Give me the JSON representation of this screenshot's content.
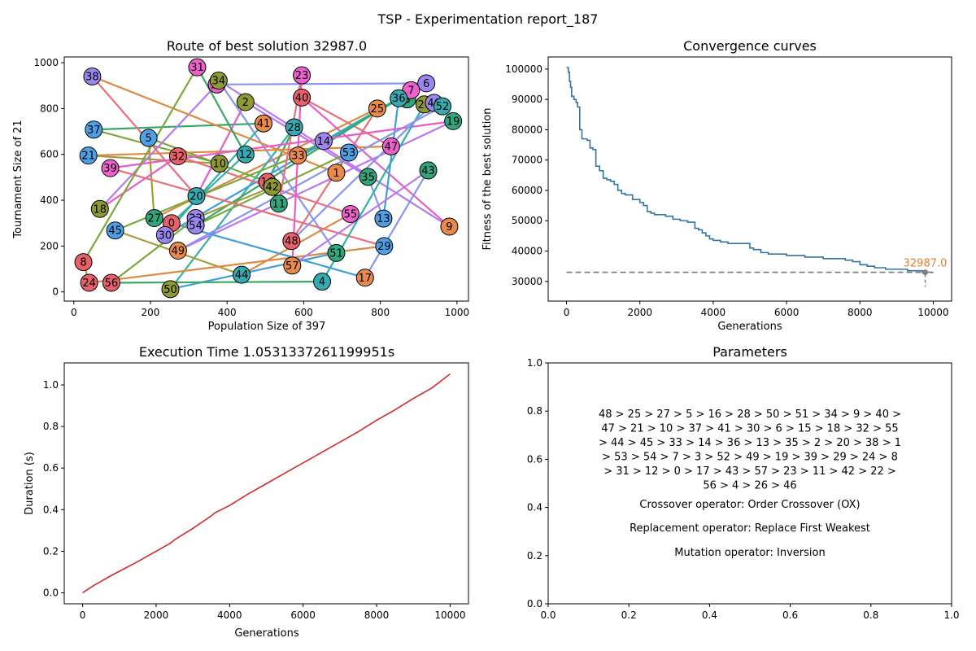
{
  "figure": {
    "suptitle": "TSP - Experimentation report_187"
  },
  "panels": {
    "route": {
      "title": "Route of best solution 32987.0",
      "xlabel": "Population Size of 397",
      "ylabel": "Tournament Size of 21"
    },
    "convergence": {
      "title": "Convergence curves",
      "xlabel": "Generations",
      "ylabel": "Fitness of the best solution",
      "annotation": "32987.0"
    },
    "time": {
      "title": "Execution Time 1.0531337261199951s",
      "xlabel": "Generations",
      "ylabel": "Duration (s)"
    },
    "params": {
      "title": "Parameters",
      "route_lines": [
        "48 > 25 > 27 > 5 > 16 > 28 > 50 > 51 > 34 > 9 > 40 >",
        "47 > 21 > 10 > 37 > 41 > 30 > 6 > 15 > 18 > 32 > 55",
        "> 44 > 45 > 33 > 14 > 36 > 13 > 35 > 2 > 20 > 38 > 1",
        "> 53 > 54 > 7 > 3 > 52 > 49 > 19 > 39 > 29 > 24 > 8",
        "> 31 > 12 > 0 > 17 > 43 > 57 > 23 > 11 > 42 > 22 >",
        "56 > 4 > 26 > 46"
      ],
      "crossover": "Crossover operator: Order Crossover (OX)",
      "replacement": "Replacement operator: Replace First Weakest",
      "mutation": "Mutation operator: Inversion"
    }
  },
  "chart_data": [
    {
      "type": "scatter",
      "title": "Route of best solution 32987.0",
      "xlabel": "Population Size of 397",
      "ylabel": "Tournament Size of 21",
      "xlim": [
        -25,
        1030
      ],
      "ylim": [
        -40,
        1025
      ],
      "xticks": [
        0,
        200,
        400,
        600,
        800,
        1000
      ],
      "yticks": [
        0,
        200,
        400,
        600,
        800,
        1000
      ],
      "cities": [
        {
          "id": 0,
          "x": 255,
          "y": 300
        },
        {
          "id": 1,
          "x": 685,
          "y": 520
        },
        {
          "id": 2,
          "x": 448,
          "y": 828
        },
        {
          "id": 3,
          "x": 870,
          "y": 840
        },
        {
          "id": 4,
          "x": 648,
          "y": 45
        },
        {
          "id": 5,
          "x": 195,
          "y": 672
        },
        {
          "id": 6,
          "x": 920,
          "y": 910
        },
        {
          "id": 7,
          "x": 880,
          "y": 880
        },
        {
          "id": 8,
          "x": 25,
          "y": 130
        },
        {
          "id": 9,
          "x": 980,
          "y": 285
        },
        {
          "id": 10,
          "x": 380,
          "y": 560
        },
        {
          "id": 11,
          "x": 535,
          "y": 385
        },
        {
          "id": 12,
          "x": 448,
          "y": 600
        },
        {
          "id": 13,
          "x": 808,
          "y": 320
        },
        {
          "id": 14,
          "x": 652,
          "y": 658
        },
        {
          "id": 15,
          "x": 373,
          "y": 905
        },
        {
          "id": 16,
          "x": 505,
          "y": 480
        },
        {
          "id": 17,
          "x": 760,
          "y": 62
        },
        {
          "id": 18,
          "x": 68,
          "y": 362
        },
        {
          "id": 19,
          "x": 990,
          "y": 745
        },
        {
          "id": 20,
          "x": 320,
          "y": 418
        },
        {
          "id": 21,
          "x": 38,
          "y": 595
        },
        {
          "id": 22,
          "x": 318,
          "y": 322
        },
        {
          "id": 23,
          "x": 595,
          "y": 945
        },
        {
          "id": 24,
          "x": 40,
          "y": 40
        },
        {
          "id": 25,
          "x": 792,
          "y": 800
        },
        {
          "id": 26,
          "x": 915,
          "y": 818
        },
        {
          "id": 27,
          "x": 210,
          "y": 322
        },
        {
          "id": 28,
          "x": 575,
          "y": 718
        },
        {
          "id": 29,
          "x": 810,
          "y": 200
        },
        {
          "id": 30,
          "x": 238,
          "y": 248
        },
        {
          "id": 31,
          "x": 322,
          "y": 980
        },
        {
          "id": 32,
          "x": 272,
          "y": 592
        },
        {
          "id": 33,
          "x": 585,
          "y": 595
        },
        {
          "id": 34,
          "x": 378,
          "y": 922
        },
        {
          "id": 35,
          "x": 768,
          "y": 502
        },
        {
          "id": 36,
          "x": 848,
          "y": 845
        },
        {
          "id": 37,
          "x": 52,
          "y": 708
        },
        {
          "id": 38,
          "x": 48,
          "y": 940
        },
        {
          "id": 39,
          "x": 95,
          "y": 540
        },
        {
          "id": 40,
          "x": 595,
          "y": 848
        },
        {
          "id": 41,
          "x": 495,
          "y": 735
        },
        {
          "id": 42,
          "x": 518,
          "y": 458
        },
        {
          "id": 43,
          "x": 925,
          "y": 530
        },
        {
          "id": 44,
          "x": 438,
          "y": 75
        },
        {
          "id": 45,
          "x": 108,
          "y": 268
        },
        {
          "id": 46,
          "x": 940,
          "y": 825
        },
        {
          "id": 47,
          "x": 828,
          "y": 635
        },
        {
          "id": 48,
          "x": 568,
          "y": 222
        },
        {
          "id": 49,
          "x": 272,
          "y": 180
        },
        {
          "id": 50,
          "x": 252,
          "y": 12
        },
        {
          "id": 51,
          "x": 685,
          "y": 170
        },
        {
          "id": 52,
          "x": 962,
          "y": 810
        },
        {
          "id": 53,
          "x": 718,
          "y": 608
        },
        {
          "id": 54,
          "x": 318,
          "y": 290
        },
        {
          "id": 55,
          "x": 722,
          "y": 340
        },
        {
          "id": 56,
          "x": 98,
          "y": 40
        },
        {
          "id": 57,
          "x": 570,
          "y": 115
        }
      ],
      "route": [
        48,
        25,
        27,
        5,
        16,
        28,
        50,
        51,
        34,
        9,
        40,
        47,
        21,
        10,
        37,
        41,
        30,
        6,
        15,
        18,
        32,
        55,
        44,
        45,
        33,
        14,
        36,
        13,
        35,
        2,
        20,
        38,
        1,
        53,
        54,
        7,
        3,
        52,
        49,
        19,
        39,
        29,
        24,
        8,
        31,
        12,
        0,
        17,
        43,
        57,
        23,
        11,
        42,
        22,
        56,
        4,
        26,
        46
      ],
      "marker_colors": [
        "#e8616a",
        "#e98a4a",
        "#8f9933",
        "#33a57a",
        "#35aab0",
        "#4da0e6",
        "#9b86ee",
        "#ec61cc"
      ],
      "edge_colors": [
        "#e8707a",
        "#db8a41",
        "#a69a3c",
        "#7ba83c",
        "#3aa766",
        "#34b0a6",
        "#3f9edb",
        "#8696ee",
        "#b67af0",
        "#e65dc8"
      ]
    },
    {
      "type": "line",
      "title": "Convergence curves",
      "xlabel": "Generations",
      "ylabel": "Fitness of the best solution",
      "xlim": [
        -500,
        10500
      ],
      "ylim": [
        23500,
        104000
      ],
      "xticks": [
        0,
        2000,
        4000,
        6000,
        8000,
        10000
      ],
      "yticks": [
        30000,
        40000,
        50000,
        60000,
        70000,
        80000,
        90000,
        100000
      ],
      "best": 32987.0,
      "best_generation": 9780,
      "series": [
        {
          "step": true,
          "color": "#3173a2",
          "x": [
            0,
            50,
            80,
            110,
            140,
            200,
            260,
            300,
            360,
            420,
            480,
            560,
            640,
            720,
            800,
            900,
            1000,
            1100,
            1200,
            1300,
            1400,
            1500,
            1600,
            1800,
            2000,
            2100,
            2200,
            2300,
            2400,
            2500,
            2700,
            2900,
            3100,
            3300,
            3500,
            3600,
            3700,
            3800,
            3900,
            4000,
            4200,
            4400,
            4600,
            4800,
            5000,
            5100,
            5300,
            5500,
            6000,
            6500,
            7000,
            7600,
            7800,
            8000,
            8200,
            8400,
            8700,
            8900,
            9100,
            9300,
            9500,
            9700,
            9780,
            10000
          ],
          "y": [
            100500,
            99000,
            96000,
            94000,
            91000,
            90000,
            89000,
            87500,
            80000,
            77000,
            77000,
            76500,
            74000,
            73500,
            68000,
            66500,
            64000,
            63500,
            63000,
            62000,
            60000,
            59000,
            58500,
            57000,
            56000,
            55000,
            53000,
            52500,
            52000,
            52000,
            51500,
            50500,
            50000,
            49500,
            47500,
            47000,
            46000,
            45000,
            44000,
            43500,
            43000,
            42500,
            42500,
            42500,
            41000,
            40500,
            39500,
            39000,
            38500,
            38000,
            37500,
            37000,
            36500,
            35500,
            35000,
            34500,
            34000,
            34000,
            34000,
            33500,
            33500,
            33000,
            32987,
            32987
          ]
        },
        {
          "name": "",
          "dashed": true,
          "color": "#808080",
          "x": [
            0,
            10000
          ],
          "y": [
            32987,
            32987
          ]
        }
      ]
    },
    {
      "type": "line",
      "title": "Execution Time 1.0531337261199951s",
      "xlabel": "Generations",
      "ylabel": "Duration (s)",
      "xlim": [
        -500,
        10500
      ],
      "ylim": [
        -0.053,
        1.106
      ],
      "xticks": [
        0,
        2000,
        4000,
        6000,
        8000,
        10000
      ],
      "yticks": [
        0.0,
        0.2,
        0.4,
        0.6,
        0.8,
        1.0
      ],
      "series": [
        {
          "color": "#d42a2a",
          "x": [
            0,
            300,
            800,
            1500,
            2000,
            2400,
            2500,
            3000,
            3500,
            3600,
            4000,
            4500,
            5000,
            5500,
            6000,
            6500,
            7000,
            7500,
            8000,
            8500,
            9000,
            9500,
            10000
          ],
          "y": [
            0.0,
            0.035,
            0.085,
            0.15,
            0.2,
            0.24,
            0.255,
            0.31,
            0.37,
            0.385,
            0.42,
            0.475,
            0.525,
            0.575,
            0.625,
            0.675,
            0.725,
            0.775,
            0.83,
            0.88,
            0.935,
            0.985,
            1.053
          ]
        }
      ]
    },
    {
      "type": "table",
      "title": "Parameters",
      "xlim": [
        0,
        1
      ],
      "ylim": [
        0,
        1
      ],
      "xticks": [
        0.0,
        0.2,
        0.4,
        0.6,
        0.8,
        1.0
      ],
      "yticks": [
        0.0,
        0.2,
        0.4,
        0.6,
        0.8,
        1.0
      ]
    }
  ]
}
